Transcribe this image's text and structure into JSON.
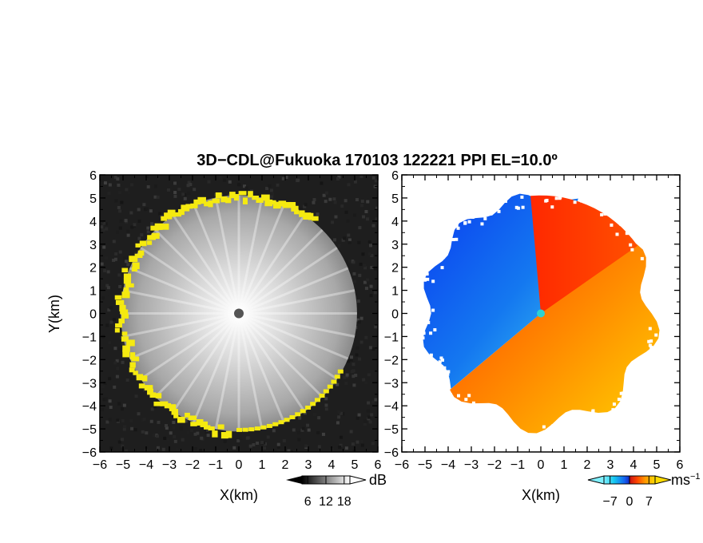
{
  "chart_data": {
    "title": "3D−CDL@Fukuoka 170103 122221 PPI EL=10.0º",
    "type": "heatmap",
    "panels": [
      {
        "id": "reflectivity",
        "field": "snr",
        "xlabel": "X(km)",
        "ylabel": "Y(km)",
        "xlim": [
          -6,
          6
        ],
        "ylim": [
          -6,
          6
        ],
        "x_ticks": [
          -6,
          -5,
          -4,
          -3,
          -2,
          -1,
          0,
          1,
          2,
          3,
          4,
          5,
          6
        ],
        "y_ticks": [
          -6,
          -5,
          -4,
          -3,
          -2,
          -1,
          0,
          1,
          2,
          3,
          4,
          5,
          6
        ],
        "tick_labels": [
          "−6",
          "−5",
          "−4",
          "−3",
          "−2",
          "−1",
          "0",
          "1",
          "2",
          "3",
          "4",
          "5",
          "6"
        ],
        "colorbar": {
          "unit": "dB",
          "ticks": [
            6,
            12,
            18
          ],
          "tick_labels": [
            "6",
            "12",
            "18"
          ],
          "colormap": "grayscale",
          "colors": [
            "#000000",
            "#ffffff"
          ]
        },
        "highlight_color": "#f5ea10",
        "range_ring_km": 5.1
      },
      {
        "id": "doppler_velocity",
        "field": "radial_velocity",
        "xlabel": "X(km)",
        "xlim": [
          -6,
          6
        ],
        "ylim": [
          -6,
          6
        ],
        "x_ticks": [
          -6,
          -5,
          -4,
          -3,
          -2,
          -1,
          0,
          1,
          2,
          3,
          4,
          5,
          6
        ],
        "y_ticks": [
          -6,
          -5,
          -4,
          -3,
          -2,
          -1,
          0,
          1,
          2,
          3,
          4,
          5,
          6
        ],
        "tick_labels": [
          "−6",
          "−5",
          "−4",
          "−3",
          "−2",
          "−1",
          "0",
          "1",
          "2",
          "3",
          "4",
          "5",
          "6"
        ],
        "colorbar": {
          "unit": "ms",
          "unit_superscript": "−1",
          "ticks": [
            -7,
            0,
            7
          ],
          "tick_labels": [
            "−7",
            "0",
            "7"
          ],
          "colormap": "cyan-blue-red-yellow",
          "colors": [
            "#80f0ff",
            "#14c8f0",
            "#1464f0",
            "#1428c8",
            "#c81414",
            "#ff4600",
            "#ff9600",
            "#ffdc00"
          ]
        },
        "range_ring_km": 5.2
      }
    ]
  }
}
